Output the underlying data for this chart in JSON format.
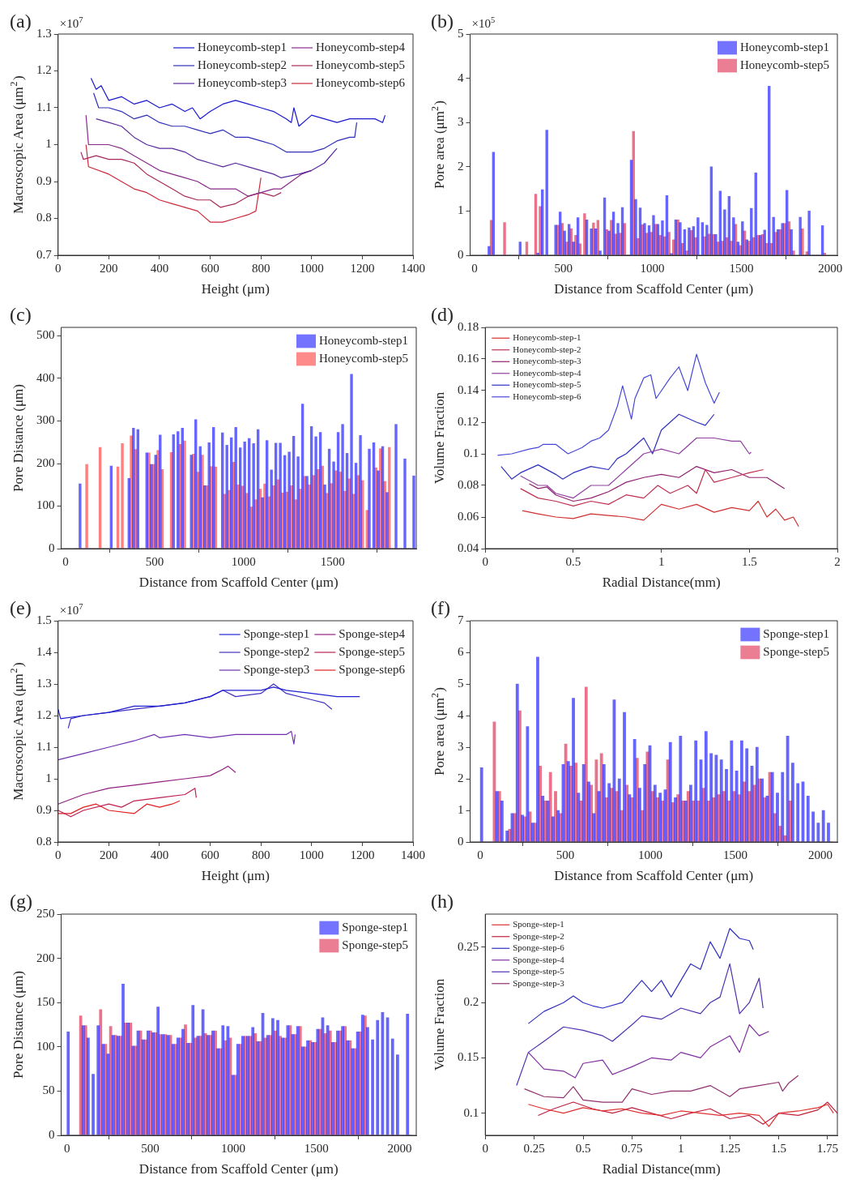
{
  "chart_data": [
    {
      "type": "line",
      "title": "(a)",
      "xlabel": "Height (μm)",
      "ylabel": "Macroscopic Area (μm$^{2}$)",
      "annotations": [
        "×10$^{7}$"
      ],
      "xlim": [
        0,
        1400
      ],
      "xticks": [
        0,
        200,
        400,
        600,
        800,
        1000,
        1200,
        1400
      ],
      "ylim": [
        0.7,
        1.3
      ],
      "yticks": [
        0.7,
        0.8,
        0.9,
        1,
        1.1,
        1.2,
        1.3
      ],
      "legend": "top right",
      "series": [
        {
          "name": "Honeycomb-step1",
          "color": "#1a1acc",
          "x": [
            130,
            150,
            170,
            200,
            250,
            300,
            350,
            400,
            450,
            500,
            530,
            560,
            600,
            650,
            700,
            750,
            800,
            850,
            900,
            920,
            930,
            950,
            1000,
            1050,
            1100,
            1150,
            1200,
            1250,
            1280,
            1290
          ],
          "values": [
            1.18,
            1.15,
            1.16,
            1.12,
            1.13,
            1.11,
            1.12,
            1.1,
            1.11,
            1.09,
            1.1,
            1.07,
            1.09,
            1.11,
            1.12,
            1.11,
            1.1,
            1.09,
            1.07,
            1.06,
            1.1,
            1.05,
            1.08,
            1.07,
            1.06,
            1.07,
            1.07,
            1.07,
            1.06,
            1.08
          ]
        },
        {
          "name": "Honeycomb-step2",
          "color": "#3030b8",
          "x": [
            140,
            160,
            200,
            250,
            300,
            350,
            400,
            450,
            500,
            550,
            600,
            650,
            700,
            750,
            800,
            850,
            900,
            950,
            1000,
            1050,
            1100,
            1150,
            1170,
            1178
          ],
          "values": [
            1.14,
            1.1,
            1.1,
            1.09,
            1.07,
            1.08,
            1.06,
            1.05,
            1.05,
            1.04,
            1.03,
            1.04,
            1.02,
            1.02,
            1.01,
            1.0,
            0.98,
            0.98,
            0.98,
            0.99,
            1.01,
            1.02,
            1.02,
            1.06
          ]
        },
        {
          "name": "Honeycomb-step3",
          "color": "#5a2aa0",
          "x": [
            150,
            200,
            250,
            300,
            350,
            400,
            450,
            500,
            550,
            600,
            650,
            700,
            750,
            800,
            850,
            880,
            950,
            1000,
            1050,
            1100
          ],
          "values": [
            1.07,
            1.06,
            1.05,
            1.02,
            1.0,
            0.99,
            0.99,
            0.98,
            0.96,
            0.95,
            0.94,
            0.95,
            0.94,
            0.93,
            0.92,
            0.91,
            0.92,
            0.93,
            0.95,
            0.99
          ]
        },
        {
          "name": "Honeycomb-step4",
          "color": "#8a2a8a",
          "x": [
            110,
            120,
            200,
            250,
            300,
            350,
            400,
            450,
            500,
            550,
            600,
            650,
            700,
            750,
            800,
            850,
            880,
            920,
            960,
            1000
          ],
          "values": [
            1.08,
            1.0,
            1.0,
            0.99,
            0.97,
            0.95,
            0.93,
            0.92,
            0.91,
            0.9,
            0.88,
            0.88,
            0.88,
            0.86,
            0.87,
            0.88,
            0.88,
            0.9,
            0.92,
            0.93
          ]
        },
        {
          "name": "Honeycomb-step5",
          "color": "#a82a5a",
          "x": [
            90,
            100,
            150,
            200,
            250,
            300,
            350,
            400,
            450,
            500,
            550,
            600,
            640,
            700,
            750,
            800,
            850,
            880
          ],
          "values": [
            0.98,
            0.96,
            0.97,
            0.96,
            0.96,
            0.95,
            0.92,
            0.9,
            0.88,
            0.86,
            0.85,
            0.85,
            0.83,
            0.84,
            0.86,
            0.87,
            0.86,
            0.87
          ]
        },
        {
          "name": "Honeycomb-step6",
          "color": "#cc2a3a",
          "x": [
            110,
            120,
            200,
            250,
            300,
            350,
            400,
            450,
            500,
            550,
            600,
            650,
            700,
            750,
            780,
            800
          ],
          "values": [
            1.0,
            0.94,
            0.92,
            0.9,
            0.88,
            0.87,
            0.85,
            0.84,
            0.83,
            0.82,
            0.79,
            0.79,
            0.8,
            0.81,
            0.82,
            0.91
          ]
        }
      ]
    },
    {
      "type": "histogram",
      "title": "(b)",
      "xlabel": "Distance from Scaffold Center (μm)",
      "ylabel": "Pore area (μm$^{2}$)",
      "annotations": [
        "×10$^{5}$"
      ],
      "xlim": [
        -25,
        2040
      ],
      "xticks": [
        0,
        500,
        1000,
        1500,
        2000
      ],
      "ylim": [
        0,
        5
      ],
      "yticks": [
        0,
        1,
        2,
        3,
        4,
        5
      ],
      "legend": "top right",
      "bins": [
        50,
        75,
        100,
        125,
        150,
        175,
        200,
        225,
        250,
        275,
        300,
        325,
        350,
        375,
        400,
        425,
        450,
        475,
        500,
        525,
        550,
        575,
        600,
        625,
        650,
        675,
        700,
        725,
        750,
        775,
        800,
        825,
        850,
        875,
        900,
        925,
        950,
        975,
        1000,
        1025,
        1050,
        1075,
        1100,
        1125,
        1150,
        1175,
        1200,
        1225,
        1250,
        1275,
        1300,
        1325,
        1350,
        1375,
        1400,
        1425,
        1450,
        1475,
        1500,
        1525,
        1550,
        1575,
        1600,
        1625,
        1650,
        1675,
        1700,
        1725,
        1750,
        1775,
        1800,
        1825,
        1850,
        1875,
        1900,
        1925,
        1950,
        1975
      ],
      "series": [
        {
          "name": "Honeycomb-step1",
          "color": "#0000ff",
          "values": [
            0,
            0.2,
            2.33,
            0,
            0,
            0,
            0,
            0,
            0.3,
            0,
            0,
            0,
            0.05,
            1.48,
            2.83,
            0,
            0.68,
            0.98,
            0.55,
            0.7,
            0.3,
            0.85,
            0,
            0.8,
            0.6,
            0.6,
            0.1,
            1.3,
            0.55,
            0.98,
            0.72,
            1.08,
            0,
            2.15,
            1.26,
            1.07,
            0.72,
            0.67,
            0.9,
            0.7,
            0.78,
            1.35,
            0.04,
            0.8,
            0.74,
            0.58,
            0.62,
            0.65,
            0.85,
            0.74,
            0.68,
            2.0,
            0.47,
            1.45,
            1.03,
            1.33,
            0.85,
            0.3,
            0.76,
            0.35,
            1.06,
            1.86,
            0.45,
            0.57,
            3.82,
            0.86,
            0.58,
            0.72,
            1.47,
            0.58,
            null,
            0.86,
            0,
            1.0,
            0,
            0,
            0.67
          ]
        },
        {
          "name": "Honeycomb-step5",
          "color": "#dc143c",
          "values": [
            0,
            0.79,
            0,
            0,
            0.74,
            0,
            0,
            0,
            0,
            0.3,
            0,
            1.38,
            1.1,
            0,
            0,
            0,
            0.68,
            0.72,
            0.3,
            0.6,
            0.45,
            0.26,
            0.94,
            0,
            0.73,
            0.79,
            null,
            0.58,
            0.79,
            0.48,
            0.5,
            0.72,
            0,
            2.8,
            0.38,
            0.69,
            0.5,
            0.52,
            0.7,
            0.45,
            0.42,
            0.52,
            0.35,
            0.8,
            0.27,
            0.1,
            0.56,
            0.4,
            null,
            0.42,
            0.48,
            0.47,
            0.3,
            0.32,
            0.4,
            0.32,
            0.7,
            0.22,
            0.55,
            0.32,
            0.4,
            0.45,
            0.47,
            0.27,
            0.27,
            0.52,
            0.58,
            0.72,
            0.76,
            0.1,
            null,
            0.6,
            0.08,
            0,
            0,
            0,
            0.05
          ]
        }
      ]
    },
    {
      "type": "histogram",
      "title": "(c)",
      "xlabel": "Distance from Scaffold Center (μm)",
      "ylabel": "Pore Distance (μm)",
      "xlim": [
        -25,
        1970
      ],
      "xticks": [
        0,
        500,
        1000,
        1500
      ],
      "ylim": [
        0,
        520
      ],
      "yticks": [
        0,
        100,
        200,
        300,
        400,
        500
      ],
      "legend": "top right",
      "bins": [
        50,
        75,
        100,
        125,
        150,
        175,
        200,
        225,
        250,
        275,
        300,
        325,
        350,
        375,
        400,
        425,
        450,
        475,
        500,
        525,
        550,
        575,
        600,
        625,
        650,
        675,
        700,
        725,
        750,
        775,
        800,
        825,
        850,
        875,
        900,
        925,
        950,
        975,
        1000,
        1025,
        1050,
        1075,
        1100,
        1125,
        1150,
        1175,
        1200,
        1225,
        1250,
        1275,
        1300,
        1325,
        1350,
        1375,
        1400,
        1425,
        1450,
        1475,
        1500,
        1525,
        1550,
        1575,
        1600,
        1625,
        1650,
        1675,
        1700,
        1725,
        1750,
        1775,
        1800,
        1825,
        1850,
        1875,
        1900,
        1925,
        1950,
        1975
      ],
      "series": [
        {
          "name": "Honeycomb-step1",
          "color": "#0000ff",
          "values": [
            0,
            152,
            0,
            0,
            0,
            0,
            0,
            0,
            194,
            0,
            0,
            0,
            165,
            283,
            280,
            0,
            225,
            198,
            220,
            267,
            0,
            0,
            268,
            275,
            283,
            0,
            220,
            303,
            240,
            148,
            249,
            285,
            0,
            272,
            243,
            261,
            285,
            237,
            251,
            259,
            247,
            280,
            120,
            254,
            185,
            248,
            248,
            219,
            227,
            264,
            216,
            340,
            170,
            287,
            263,
            273,
            150,
            234,
            204,
            273,
            292,
            224,
            410,
            201,
            266,
            0,
            234,
            249,
            183,
            240,
            132,
            0,
            292,
            0,
            211,
            0,
            171
          ]
        },
        {
          "name": "Honeycomb-step5",
          "color": "#ff2a2a",
          "values": [
            0,
            0,
            198,
            0,
            0,
            238,
            0,
            0,
            0,
            192,
            247,
            0,
            265,
            233,
            0,
            0,
            225,
            198,
            231,
            186,
            0,
            226,
            0,
            245,
            253,
            0,
            222,
            180,
            220,
            148,
            193,
            192,
            0,
            128,
            137,
            203,
            150,
            147,
            130,
            98,
            115,
            140,
            152,
            122,
            148,
            162,
            131,
            133,
            148,
            115,
            140,
            170,
            150,
            172,
            186,
            194,
            130,
            153,
            183,
            180,
            135,
            164,
            128,
            172,
            160,
            90,
            0,
            190,
            235,
            158,
            238,
            0,
            0,
            0,
            0,
            0,
            0
          ]
        }
      ]
    },
    {
      "type": "line",
      "title": "(d)",
      "xlabel": "Radial Distance(mm)",
      "ylabel": "Volume Fraction",
      "xlim": [
        0,
        2
      ],
      "xticks": [
        0,
        0.5,
        1,
        1.5,
        2
      ],
      "ylim": [
        0.04,
        0.18
      ],
      "yticks": [
        0.04,
        0.06,
        0.08,
        0.1,
        0.12,
        0.14,
        0.16,
        0.18
      ],
      "legend": "top left",
      "series": [
        {
          "name": "Honeycomb-step-1",
          "color": "#d03030",
          "x": [
            0.21,
            0.3,
            0.4,
            0.5,
            0.6,
            0.7,
            0.8,
            0.9,
            1.0,
            1.1,
            1.2,
            1.3,
            1.4,
            1.5,
            1.55,
            1.6,
            1.65,
            1.7,
            1.75,
            1.78
          ],
          "values": [
            0.064,
            0.062,
            0.06,
            0.059,
            0.062,
            0.061,
            0.06,
            0.058,
            0.068,
            0.065,
            0.068,
            0.063,
            0.066,
            0.064,
            0.07,
            0.06,
            0.065,
            0.058,
            0.06,
            0.054
          ]
        },
        {
          "name": "Honeycomb-step-2",
          "color": "#c03050",
          "x": [
            0.2,
            0.3,
            0.4,
            0.5,
            0.6,
            0.7,
            0.8,
            0.9,
            0.98,
            1.05,
            1.15,
            1.2,
            1.25,
            1.3,
            1.4,
            1.5,
            1.58
          ],
          "values": [
            0.078,
            0.072,
            0.07,
            0.067,
            0.07,
            0.068,
            0.074,
            0.072,
            0.08,
            0.075,
            0.08,
            0.075,
            0.09,
            0.082,
            0.085,
            0.088,
            0.09
          ]
        },
        {
          "name": "Honeycomb-step-3",
          "color": "#902070",
          "x": [
            0.25,
            0.3,
            0.35,
            0.4,
            0.5,
            0.6,
            0.7,
            0.8,
            0.9,
            1.0,
            1.1,
            1.2,
            1.3,
            1.4,
            1.5,
            1.6,
            1.7
          ],
          "values": [
            0.081,
            0.078,
            0.079,
            0.074,
            0.07,
            0.072,
            0.076,
            0.082,
            0.085,
            0.087,
            0.085,
            0.092,
            0.088,
            0.09,
            0.085,
            0.085,
            0.078
          ]
        },
        {
          "name": "Honeycomb-step-4",
          "color": "#9040a0",
          "x": [
            0.2,
            0.3,
            0.35,
            0.4,
            0.5,
            0.6,
            0.7,
            0.8,
            0.9,
            1.0,
            1.1,
            1.2,
            1.3,
            1.4,
            1.45,
            1.5,
            1.51
          ],
          "values": [
            0.086,
            0.08,
            0.08,
            0.075,
            0.072,
            0.08,
            0.08,
            0.09,
            0.1,
            0.103,
            0.1,
            0.11,
            0.11,
            0.108,
            0.108,
            0.1,
            0.101
          ]
        },
        {
          "name": "Honeycomb-step-5",
          "color": "#3030c0",
          "x": [
            0.09,
            0.15,
            0.2,
            0.3,
            0.4,
            0.44,
            0.5,
            0.6,
            0.7,
            0.75,
            0.8,
            0.9,
            0.95,
            1.0,
            1.1,
            1.2,
            1.25,
            1.3
          ],
          "values": [
            0.092,
            0.084,
            0.088,
            0.093,
            0.087,
            0.084,
            0.088,
            0.092,
            0.09,
            0.097,
            0.1,
            0.11,
            0.1,
            0.115,
            0.125,
            0.12,
            0.118,
            0.125
          ]
        },
        {
          "name": "Honeycomb-step-6",
          "color": "#4848d8",
          "x": [
            0.07,
            0.15,
            0.25,
            0.3,
            0.33,
            0.4,
            0.47,
            0.55,
            0.6,
            0.65,
            0.7,
            0.75,
            0.78,
            0.83,
            0.85,
            0.9,
            0.94,
            0.97,
            1.05,
            1.1,
            1.15,
            1.2,
            1.25,
            1.3,
            1.33
          ],
          "values": [
            0.099,
            0.1,
            0.103,
            0.104,
            0.106,
            0.106,
            0.1,
            0.104,
            0.108,
            0.11,
            0.115,
            0.13,
            0.143,
            0.122,
            0.135,
            0.148,
            0.15,
            0.135,
            0.148,
            0.155,
            0.14,
            0.163,
            0.145,
            0.132,
            0.139
          ]
        }
      ]
    },
    {
      "type": "line",
      "title": "(e)",
      "xlabel": "Height (μm)",
      "ylabel": "Macroscopic Area (μm$^{2}$)",
      "annotations": [
        "×10$^{7}$"
      ],
      "xlim": [
        0,
        1400
      ],
      "xticks": [
        0,
        200,
        400,
        600,
        800,
        1000,
        1200,
        1400
      ],
      "ylim": [
        0.8,
        1.5
      ],
      "yticks": [
        0.8,
        0.9,
        1,
        1.1,
        1.2,
        1.3,
        1.4,
        1.5
      ],
      "legend": "top right",
      "series": [
        {
          "name": "Sponge-step1",
          "color": "#2020d0",
          "x": [
            0,
            10,
            100,
            200,
            300,
            400,
            500,
            600,
            650,
            700,
            800,
            850,
            900,
            1000,
            1100,
            1150,
            1190
          ],
          "values": [
            1.22,
            1.19,
            1.2,
            1.21,
            1.23,
            1.23,
            1.24,
            1.26,
            1.28,
            1.28,
            1.28,
            1.29,
            1.28,
            1.27,
            1.26,
            1.26,
            1.26
          ]
        },
        {
          "name": "Sponge-step2",
          "color": "#4030c0",
          "x": [
            40,
            50,
            100,
            200,
            300,
            400,
            500,
            600,
            650,
            700,
            800,
            850,
            900,
            1000,
            1050,
            1080
          ],
          "values": [
            1.16,
            1.19,
            1.2,
            1.21,
            1.22,
            1.23,
            1.24,
            1.26,
            1.28,
            1.26,
            1.27,
            1.3,
            1.27,
            1.25,
            1.24,
            1.22
          ]
        },
        {
          "name": "Sponge-step3",
          "color": "#7030b0",
          "x": [
            0,
            100,
            200,
            300,
            380,
            400,
            500,
            600,
            700,
            800,
            900,
            920,
            930,
            935
          ],
          "values": [
            1.06,
            1.08,
            1.1,
            1.12,
            1.14,
            1.13,
            1.14,
            1.13,
            1.14,
            1.14,
            1.14,
            1.15,
            1.11,
            1.14
          ]
        },
        {
          "name": "Sponge-step4",
          "color": "#902080",
          "x": [
            0,
            100,
            200,
            300,
            400,
            500,
            600,
            650,
            670,
            700
          ],
          "values": [
            0.92,
            0.95,
            0.97,
            0.98,
            0.99,
            1.0,
            1.01,
            1.03,
            1.04,
            1.02
          ]
        },
        {
          "name": "Sponge-step5",
          "color": "#c02050",
          "x": [
            0,
            50,
            100,
            200,
            250,
            300,
            400,
            500,
            540,
            545
          ],
          "values": [
            0.9,
            0.88,
            0.9,
            0.92,
            0.91,
            0.93,
            0.94,
            0.95,
            0.97,
            0.94
          ]
        },
        {
          "name": "Sponge-step6",
          "color": "#e02020",
          "x": [
            0,
            50,
            100,
            150,
            200,
            300,
            350,
            400,
            450,
            480
          ],
          "values": [
            0.89,
            0.89,
            0.91,
            0.92,
            0.9,
            0.89,
            0.92,
            0.91,
            0.92,
            0.93
          ]
        }
      ]
    },
    {
      "type": "histogram",
      "title": "(f)",
      "xlabel": "Distance from Scaffold Center (μm)",
      "ylabel": "Pore area (μm$^{2}$)",
      "xlim": [
        -60,
        2100
      ],
      "xticks": [
        0,
        500,
        1000,
        1500,
        2000
      ],
      "ylim": [
        0,
        7
      ],
      "yticks": [
        0,
        1,
        2,
        3,
        4,
        5,
        6,
        7
      ],
      "legend": "top right",
      "bins": [
        0,
        30,
        60,
        90,
        120,
        150,
        180,
        210,
        240,
        270,
        300,
        330,
        360,
        390,
        420,
        450,
        480,
        510,
        540,
        570,
        600,
        630,
        660,
        690,
        720,
        750,
        780,
        810,
        840,
        870,
        900,
        930,
        960,
        990,
        1020,
        1050,
        1080,
        1110,
        1140,
        1170,
        1200,
        1230,
        1260,
        1290,
        1320,
        1350,
        1380,
        1410,
        1440,
        1470,
        1500,
        1530,
        1560,
        1590,
        1620,
        1650,
        1680,
        1710,
        1740,
        1770,
        1800,
        1830,
        1860,
        1890,
        1920,
        1950,
        1980,
        2010,
        2040,
        2070
      ],
      "series": [
        {
          "name": "Sponge-step1",
          "color": "#0000ff",
          "values": [
            2.35,
            0,
            0,
            1.6,
            1.3,
            0.35,
            0.9,
            5.0,
            0.85,
            3.65,
            0.6,
            5.85,
            1.45,
            1.3,
            0.8,
            1.0,
            2.45,
            2.55,
            4.55,
            1.55,
            2.45,
            1.9,
            0.9,
            1.6,
            2.45,
            1.85,
            4.5,
            2.0,
            4.1,
            1.5,
            3.25,
            1.7,
            2.45,
            3.05,
            1.8,
            1.55,
            1.65,
            3.15,
            1.4,
            3.35,
            1.3,
            1.8,
            3.2,
            2.6,
            3.5,
            2.8,
            2.75,
            2.6,
            2.3,
            3.2,
            2.25,
            3.2,
            2.95,
            2.4,
            3.0,
            2.0,
            1.45,
            2.2,
            1.55,
            2.2,
            3.35,
            2.5,
            1.85,
            1.9,
            1.45,
            0.95,
            0.6,
            1.0,
            0.6
          ]
        },
        {
          "name": "Sponge-step5",
          "color": "#dc143c",
          "values": [
            0,
            0,
            3.8,
            1.6,
            0,
            0.4,
            0.9,
            4.15,
            0.8,
            0.95,
            0.6,
            2.4,
            1.3,
            2.2,
            1.6,
            0.9,
            3.1,
            2.4,
            2.5,
            1.3,
            4.9,
            1.8,
            2.6,
            2.8,
            1.4,
            1.7,
            1.6,
            1.0,
            1.8,
            1.4,
            2.65,
            1.0,
            2.85,
            1.6,
            1.4,
            1.3,
            2.6,
            1.25,
            1.5,
            1.3,
            1.6,
            1.3,
            1.3,
            1.7,
            1.3,
            1.4,
            1.5,
            1.6,
            1.3,
            1.6,
            1.5,
            1.9,
            1.6,
            1.8,
            2.0,
            1.4,
            2.2,
            0.9,
            0.5,
            0.2,
            1.3,
            0,
            0,
            0,
            0,
            0,
            0,
            0,
            0
          ]
        }
      ]
    },
    {
      "type": "histogram",
      "title": "(g)",
      "xlabel": "Distance from Scaffold Center (μm)",
      "ylabel": "Pore Distance (μm)",
      "xlim": [
        -35,
        2100
      ],
      "xticks": [
        0,
        500,
        1000,
        1500,
        2000
      ],
      "ylim": [
        0,
        250
      ],
      "yticks": [
        0,
        50,
        100,
        150,
        200,
        250
      ],
      "legend": "top right",
      "bins": [
        0,
        30,
        60,
        90,
        120,
        150,
        180,
        210,
        240,
        270,
        300,
        330,
        360,
        390,
        420,
        450,
        480,
        510,
        540,
        570,
        600,
        630,
        660,
        690,
        720,
        750,
        780,
        810,
        840,
        870,
        900,
        930,
        960,
        990,
        1020,
        1050,
        1080,
        1110,
        1140,
        1170,
        1200,
        1230,
        1260,
        1290,
        1320,
        1350,
        1380,
        1410,
        1440,
        1470,
        1500,
        1530,
        1560,
        1590,
        1620,
        1650,
        1680,
        1710,
        1740,
        1770,
        1800,
        1830,
        1860,
        1890,
        1920,
        1950,
        1980,
        2010,
        2040,
        2070
      ],
      "series": [
        {
          "name": "Sponge-step1",
          "color": "#0000ff",
          "values": [
            117,
            0,
            0,
            124,
            110,
            69,
            124,
            103,
            92,
            113,
            112,
            171,
            127,
            101,
            118,
            108,
            118,
            116,
            145,
            114,
            113,
            103,
            110,
            120,
            104,
            147,
            112,
            142,
            113,
            118,
            98,
            124,
            123,
            68,
            103,
            112,
            112,
            122,
            106,
            138,
            113,
            132,
            130,
            110,
            124,
            114,
            123,
            100,
            107,
            105,
            120,
            133,
            124,
            105,
            118,
            123,
            107,
            98,
            117,
            136,
            122,
            108,
            130,
            139,
            133,
            109,
            91,
            0,
            137
          ]
        },
        {
          "name": "Sponge-step5",
          "color": "#dc143c",
          "values": [
            0,
            0,
            135,
            124,
            0,
            0,
            142,
            103,
            123,
            113,
            112,
            127,
            127,
            101,
            118,
            108,
            118,
            116,
            114,
            114,
            113,
            103,
            110,
            125,
            104,
            110,
            112,
            115,
            113,
            118,
            98,
            107,
            110,
            68,
            103,
            112,
            112,
            115,
            106,
            110,
            113,
            118,
            112,
            110,
            124,
            114,
            123,
            100,
            107,
            105,
            120,
            115,
            118,
            105,
            118,
            123,
            107,
            98,
            117,
            135,
            0,
            0,
            0,
            0,
            0,
            0,
            0,
            0,
            0
          ]
        }
      ]
    },
    {
      "type": "line",
      "title": "(h)",
      "xlabel": "Radial Distance(mm)",
      "ylabel": "Volume Fraction",
      "xlim": [
        0,
        1.8
      ],
      "xticks": [
        0,
        0.25,
        0.5,
        0.75,
        1,
        1.25,
        1.5,
        1.75
      ],
      "ylim": [
        0.08,
        0.28
      ],
      "yticks": [
        0.1,
        0.15,
        0.2,
        0.25
      ],
      "legend": "top left",
      "series": [
        {
          "name": "Sponge-step-1",
          "color": "#e03030",
          "x": [
            0.22,
            0.3,
            0.4,
            0.5,
            0.6,
            0.7,
            0.8,
            0.9,
            1.0,
            1.1,
            1.2,
            1.3,
            1.4,
            1.45,
            1.5,
            1.6,
            1.7,
            1.75,
            1.78
          ],
          "values": [
            0.108,
            0.104,
            0.1,
            0.105,
            0.102,
            0.104,
            0.1,
            0.098,
            0.102,
            0.1,
            0.098,
            0.1,
            0.098,
            0.088,
            0.1,
            0.102,
            0.105,
            0.108,
            0.1
          ]
        },
        {
          "name": "Sponge-step-2",
          "color": "#c02040",
          "x": [
            0.27,
            0.35,
            0.45,
            0.55,
            0.65,
            0.75,
            0.85,
            0.95,
            1.05,
            1.15,
            1.25,
            1.35,
            1.42,
            1.5,
            1.6,
            1.7,
            1.75,
            1.8
          ],
          "values": [
            0.098,
            0.104,
            0.11,
            0.104,
            0.1,
            0.105,
            0.1,
            0.095,
            0.1,
            0.104,
            0.095,
            0.098,
            0.09,
            0.1,
            0.098,
            0.103,
            0.11,
            0.1
          ]
        },
        {
          "name": "Sponge-step-6",
          "color": "#3030c0",
          "x": [
            0.22,
            0.3,
            0.4,
            0.45,
            0.5,
            0.55,
            0.6,
            0.7,
            0.75,
            0.8,
            0.85,
            0.9,
            0.95,
            1.0,
            1.05,
            1.1,
            1.15,
            1.2,
            1.25,
            1.3,
            1.35,
            1.37
          ],
          "values": [
            0.181,
            0.192,
            0.2,
            0.206,
            0.2,
            0.197,
            0.195,
            0.2,
            0.21,
            0.22,
            0.21,
            0.22,
            0.205,
            0.22,
            0.235,
            0.23,
            0.255,
            0.24,
            0.267,
            0.258,
            0.256,
            0.248
          ]
        },
        {
          "name": "Sponge-step-4",
          "color": "#8030a0",
          "x": [
            0.22,
            0.3,
            0.4,
            0.46,
            0.5,
            0.6,
            0.65,
            0.75,
            0.85,
            0.95,
            1.0,
            1.1,
            1.15,
            1.25,
            1.3,
            1.35,
            1.4,
            1.45
          ],
          "values": [
            0.155,
            0.14,
            0.138,
            0.132,
            0.145,
            0.148,
            0.135,
            0.142,
            0.15,
            0.148,
            0.155,
            0.15,
            0.16,
            0.17,
            0.155,
            0.18,
            0.17,
            0.174
          ]
        },
        {
          "name": "Sponge-step-5",
          "color": "#5030b0",
          "x": [
            0.16,
            0.22,
            0.3,
            0.4,
            0.5,
            0.6,
            0.65,
            0.75,
            0.8,
            0.9,
            1.0,
            1.1,
            1.15,
            1.2,
            1.25,
            1.3,
            1.35,
            1.4,
            1.42
          ],
          "values": [
            0.125,
            0.155,
            0.165,
            0.178,
            0.175,
            0.17,
            0.165,
            0.18,
            0.188,
            0.185,
            0.195,
            0.19,
            0.2,
            0.205,
            0.235,
            0.19,
            0.2,
            0.222,
            0.195
          ]
        },
        {
          "name": "Sponge-step-3",
          "color": "#903070",
          "x": [
            0.2,
            0.3,
            0.4,
            0.45,
            0.5,
            0.6,
            0.7,
            0.75,
            0.85,
            0.95,
            1.05,
            1.15,
            1.25,
            1.3,
            1.4,
            1.5,
            1.52,
            1.55,
            1.6
          ],
          "values": [
            0.122,
            0.115,
            0.114,
            0.124,
            0.112,
            0.11,
            0.11,
            0.122,
            0.117,
            0.12,
            0.12,
            0.125,
            0.115,
            0.122,
            0.125,
            0.128,
            0.12,
            0.127,
            0.134
          ]
        }
      ]
    }
  ]
}
